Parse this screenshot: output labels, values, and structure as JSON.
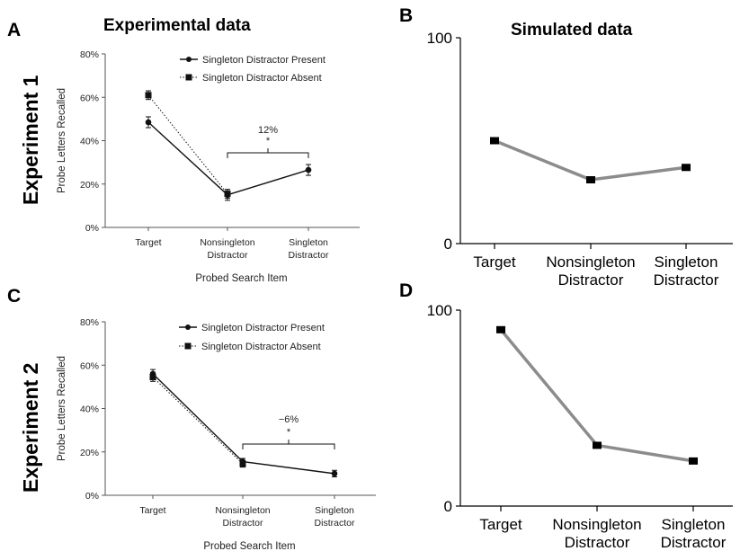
{
  "panel_letters": {
    "a": "A",
    "b": "B",
    "c": "C",
    "d": "D"
  },
  "row_labels": {
    "row1": "Experiment 1",
    "row2": "Experiment 2"
  },
  "headings": {
    "experimental": "Experimental data",
    "simulated": "Simulated data"
  },
  "colors": {
    "line": "#000000",
    "sim_line": "#8c8c8c",
    "marker": "#000000"
  },
  "chart_data": [
    {
      "id": "A",
      "type": "line",
      "categories": [
        "Target",
        "Nonsingleton\nDistractor",
        "Singleton\nDistractor"
      ],
      "ylabel": "Probe Letters Recalled",
      "xlabel": "Probed Search Item",
      "ylim": [
        0,
        80
      ],
      "yticks": [
        "0%",
        "20%",
        "40%",
        "60%",
        "80%"
      ],
      "series": [
        {
          "name": "Singleton Distractor Present",
          "style": "solid",
          "marker": "circle",
          "values": [
            48.5,
            15,
            26.5
          ],
          "errors": [
            2.5,
            2.5,
            2.5
          ]
        },
        {
          "name": "Singleton Distractor Absent",
          "style": "dotted",
          "marker": "square",
          "values": [
            61,
            15.5,
            null
          ],
          "errors": [
            2,
            2,
            null
          ]
        }
      ],
      "annotation": {
        "text": "12%",
        "star": "*"
      },
      "legend": "top-right"
    },
    {
      "id": "B",
      "type": "line",
      "categories": [
        "Target",
        "Nonsingleton\nDistractor",
        "Singleton\nDistractor"
      ],
      "ylim": [
        0,
        100
      ],
      "yticks": [
        "0",
        "100"
      ],
      "series": [
        {
          "values": [
            50,
            31,
            37
          ]
        }
      ]
    },
    {
      "id": "C",
      "type": "line",
      "categories": [
        "Target",
        "Nonsingleton\nDistractor",
        "Singleton\nDistractor"
      ],
      "ylabel": "Probe Letters Recalled",
      "xlabel": "Probed Search Item",
      "ylim": [
        0,
        80
      ],
      "yticks": [
        "0%",
        "20%",
        "40%",
        "60%",
        "80%"
      ],
      "series": [
        {
          "name": "Singleton Distractor Present",
          "style": "solid",
          "marker": "circle",
          "values": [
            56,
            15.5,
            10
          ],
          "errors": [
            2,
            1.5,
            1.5
          ]
        },
        {
          "name": "Singleton Distractor Absent",
          "style": "dotted",
          "marker": "square",
          "values": [
            54.5,
            14.5,
            null
          ],
          "errors": [
            2,
            1.5,
            null
          ]
        }
      ],
      "annotation": {
        "text": "−6%",
        "star": "*"
      },
      "legend": "top-right"
    },
    {
      "id": "D",
      "type": "line",
      "categories": [
        "Target",
        "Nonsingleton\nDistractor",
        "Singleton\nDistractor"
      ],
      "ylim": [
        0,
        100
      ],
      "yticks": [
        "0",
        "100"
      ],
      "series": [
        {
          "values": [
            90,
            31,
            23
          ]
        }
      ]
    }
  ]
}
